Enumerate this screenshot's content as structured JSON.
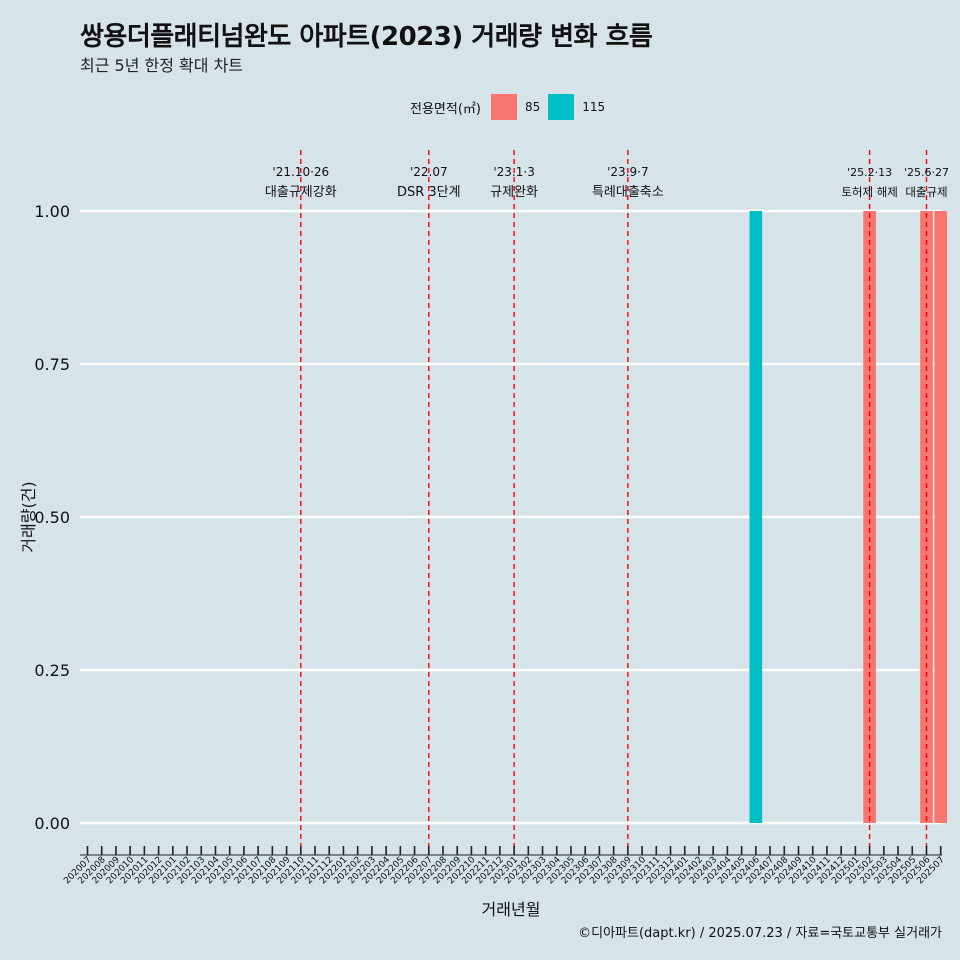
{
  "title": "쌍용더플래티넘완도 아파트(2023) 거래량 변화 흐름",
  "subtitle": "최근 5년 한정 확대 차트",
  "legend": {
    "title": "전용면적(㎡)",
    "items": [
      {
        "label": "85",
        "color": "#f8766d"
      },
      {
        "label": "115",
        "color": "#00bfc4"
      }
    ]
  },
  "caption": "©디아파트(dapt.kr) / 2025.07.23 / 자료=국토교통부 실거래가",
  "chart_data": {
    "type": "bar",
    "title": "쌍용더플래티넘완도 아파트(2023) 거래량 변화 흐름",
    "xlabel": "거래년월",
    "ylabel": "거래량(건)",
    "ylim": [
      0,
      1
    ],
    "yticks": [
      "0.00",
      "0.25",
      "0.50",
      "0.75",
      "1.00"
    ],
    "categories": [
      "202007",
      "202008",
      "202009",
      "202010",
      "202011",
      "202012",
      "202101",
      "202102",
      "202103",
      "202104",
      "202105",
      "202106",
      "202107",
      "202108",
      "202109",
      "202110",
      "202111",
      "202112",
      "202201",
      "202202",
      "202203",
      "202204",
      "202205",
      "202206",
      "202207",
      "202208",
      "202209",
      "202210",
      "202211",
      "202212",
      "202301",
      "202302",
      "202303",
      "202304",
      "202305",
      "202306",
      "202307",
      "202308",
      "202309",
      "202310",
      "202311",
      "202312",
      "202401",
      "202402",
      "202403",
      "202404",
      "202405",
      "202406",
      "202407",
      "202408",
      "202409",
      "202410",
      "202411",
      "202412",
      "202501",
      "202502",
      "202503",
      "202504",
      "202505",
      "202506",
      "202507"
    ],
    "series": [
      {
        "name": "85",
        "color": "#f8766d",
        "points": [
          {
            "x": "202502",
            "y": 1
          },
          {
            "x": "202506",
            "y": 1
          },
          {
            "x": "202507",
            "y": 1
          }
        ]
      },
      {
        "name": "115",
        "color": "#00bfc4",
        "points": [
          {
            "x": "202406",
            "y": 1
          }
        ]
      }
    ],
    "annotations": [
      {
        "x": "202110",
        "line1": "'21.10·26",
        "line2": "대출규제강화"
      },
      {
        "x": "202207",
        "line1": "'22.07",
        "line2": "DSR 3단계"
      },
      {
        "x": "202301",
        "line1": "'23.1·3",
        "line2": "규제완화"
      },
      {
        "x": "202309",
        "line1": "'23.9·7",
        "line2": "특례대출축소"
      },
      {
        "x": "202502",
        "line1": "'25.2·13",
        "line2": "토허제 해제"
      },
      {
        "x": "202506",
        "line1": "'25.6·27",
        "line2": "대출규제"
      }
    ],
    "grid": true,
    "legend_position": "top"
  }
}
